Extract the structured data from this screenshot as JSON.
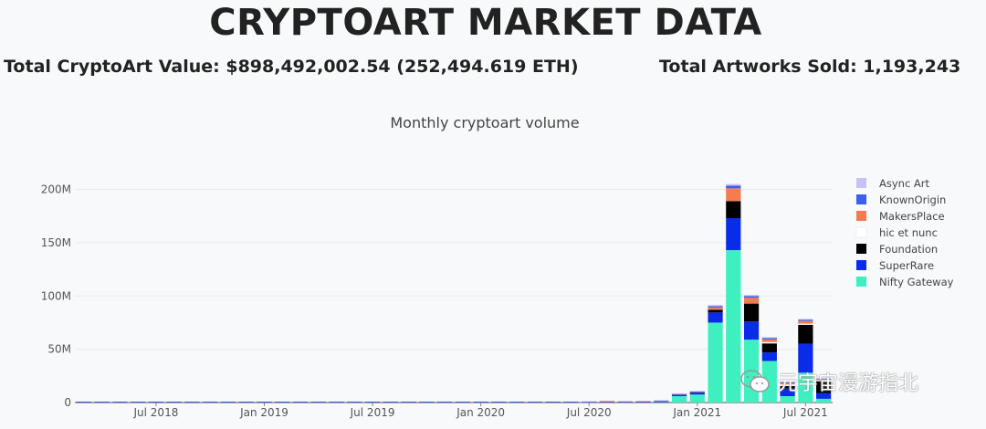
{
  "header": {
    "title": "CRYPTOART MARKET DATA",
    "total_value": "Total CryptoArt Value: $898,492,002.54 (252,494.619 ETH)",
    "total_sold": "Total Artworks Sold: 1,193,243"
  },
  "watermark": {
    "text": "元宇宙漫游指北",
    "icon": "wechat-icon"
  },
  "chart_data": {
    "type": "bar",
    "stacked": true,
    "title": "Monthly cryptoart volume",
    "xlabel": "",
    "ylabel": "",
    "ylim": [
      0,
      215000000
    ],
    "y_ticks": [
      0,
      50000000,
      100000000,
      150000000,
      200000000
    ],
    "y_tick_labels": [
      "0",
      "50M",
      "100M",
      "150M",
      "200M"
    ],
    "x_tick_labels": [
      "Jul 2018",
      "Jan 2019",
      "Jul 2019",
      "Jan 2020",
      "Jul 2020",
      "Jan 2021",
      "Jul 2021"
    ],
    "x_tick_positions": [
      4,
      10,
      16,
      22,
      28,
      34,
      40
    ],
    "categories": [
      "Mar 2018",
      "Apr 2018",
      "May 2018",
      "Jun 2018",
      "Jul 2018",
      "Aug 2018",
      "Sep 2018",
      "Oct 2018",
      "Nov 2018",
      "Dec 2018",
      "Jan 2019",
      "Feb 2019",
      "Mar 2019",
      "Apr 2019",
      "May 2019",
      "Jun 2019",
      "Jul 2019",
      "Aug 2019",
      "Sep 2019",
      "Oct 2019",
      "Nov 2019",
      "Dec 2019",
      "Jan 2020",
      "Feb 2020",
      "Mar 2020",
      "Apr 2020",
      "May 2020",
      "Jun 2020",
      "Jul 2020",
      "Aug 2020",
      "Sep 2020",
      "Oct 2020",
      "Nov 2020",
      "Dec 2020",
      "Jan 2021",
      "Feb 2021",
      "Mar 2021",
      "Apr 2021",
      "May 2021",
      "Jun 2021",
      "Jul 2021",
      "Aug 2021"
    ],
    "legend_position": "right",
    "series": [
      {
        "name": "Nifty Gateway",
        "color": "#3ef0c0",
        "values": [
          0,
          0,
          0,
          0,
          0,
          0,
          0,
          0,
          0,
          0,
          0,
          0,
          0,
          0,
          0,
          0,
          0,
          0,
          0,
          0,
          0,
          0,
          0,
          0,
          0,
          0,
          0,
          0,
          0,
          0,
          0,
          0,
          300000,
          6000000,
          7500000,
          75000000,
          143000000,
          59000000,
          39000000,
          6000000,
          28000000,
          3500000
        ]
      },
      {
        "name": "SuperRare",
        "color": "#0a2be8",
        "values": [
          700000,
          600000,
          300000,
          300000,
          300000,
          300000,
          300000,
          300000,
          500000,
          500000,
          500000,
          500000,
          600000,
          600000,
          500000,
          500000,
          500000,
          500000,
          500000,
          600000,
          500000,
          500000,
          500000,
          500000,
          500000,
          500000,
          700000,
          500000,
          500000,
          500000,
          600000,
          700000,
          800000,
          1200000,
          1800000,
          9500000,
          30000000,
          17000000,
          8000000,
          7000000,
          27000000,
          5500000
        ]
      },
      {
        "name": "Foundation",
        "color": "#000000",
        "values": [
          0,
          0,
          0,
          0,
          0,
          0,
          0,
          0,
          0,
          0,
          0,
          0,
          0,
          0,
          0,
          0,
          0,
          0,
          0,
          0,
          0,
          0,
          0,
          0,
          0,
          0,
          0,
          0,
          0,
          0,
          0,
          0,
          0,
          0,
          200000,
          2500000,
          16000000,
          17000000,
          8500000,
          2500000,
          18000000,
          11000000
        ]
      },
      {
        "name": "hic et nunc",
        "color": "#ffffff",
        "values": [
          0,
          0,
          0,
          0,
          0,
          0,
          0,
          0,
          0,
          0,
          0,
          0,
          0,
          0,
          0,
          0,
          0,
          0,
          0,
          0,
          0,
          0,
          0,
          0,
          0,
          0,
          0,
          0,
          0,
          0,
          0,
          0,
          0,
          0,
          0,
          0,
          0,
          300000,
          1200000,
          1500000,
          1000000,
          1000000
        ]
      },
      {
        "name": "MakersPlace",
        "color": "#f47c4e",
        "values": [
          0,
          0,
          0,
          0,
          0,
          0,
          0,
          0,
          0,
          0,
          0,
          0,
          0,
          0,
          0,
          0,
          0,
          0,
          0,
          0,
          0,
          0,
          0,
          0,
          0,
          0,
          0,
          0,
          0,
          700000,
          200000,
          300000,
          200000,
          300000,
          300000,
          2200000,
          12000000,
          5000000,
          2500000,
          1200000,
          2500000,
          700000
        ]
      },
      {
        "name": "KnownOrigin",
        "color": "#3b5ef0",
        "values": [
          0,
          0,
          0,
          0,
          0,
          0,
          0,
          0,
          0,
          0,
          0,
          0,
          0,
          0,
          0,
          0,
          0,
          0,
          0,
          0,
          0,
          0,
          0,
          0,
          0,
          0,
          0,
          0,
          0,
          0,
          0,
          0,
          300000,
          400000,
          400000,
          1300000,
          2500000,
          1500000,
          1200000,
          800000,
          1200000,
          500000
        ]
      },
      {
        "name": "Async Art",
        "color": "#c6c3f4",
        "values": [
          0,
          0,
          0,
          0,
          0,
          0,
          0,
          0,
          0,
          0,
          0,
          0,
          0,
          0,
          0,
          0,
          0,
          0,
          0,
          0,
          0,
          0,
          0,
          0,
          0,
          0,
          0,
          0,
          100000,
          100000,
          100000,
          100000,
          300000,
          300000,
          300000,
          1000000,
          1500000,
          1200000,
          1000000,
          700000,
          800000,
          500000
        ]
      }
    ]
  }
}
